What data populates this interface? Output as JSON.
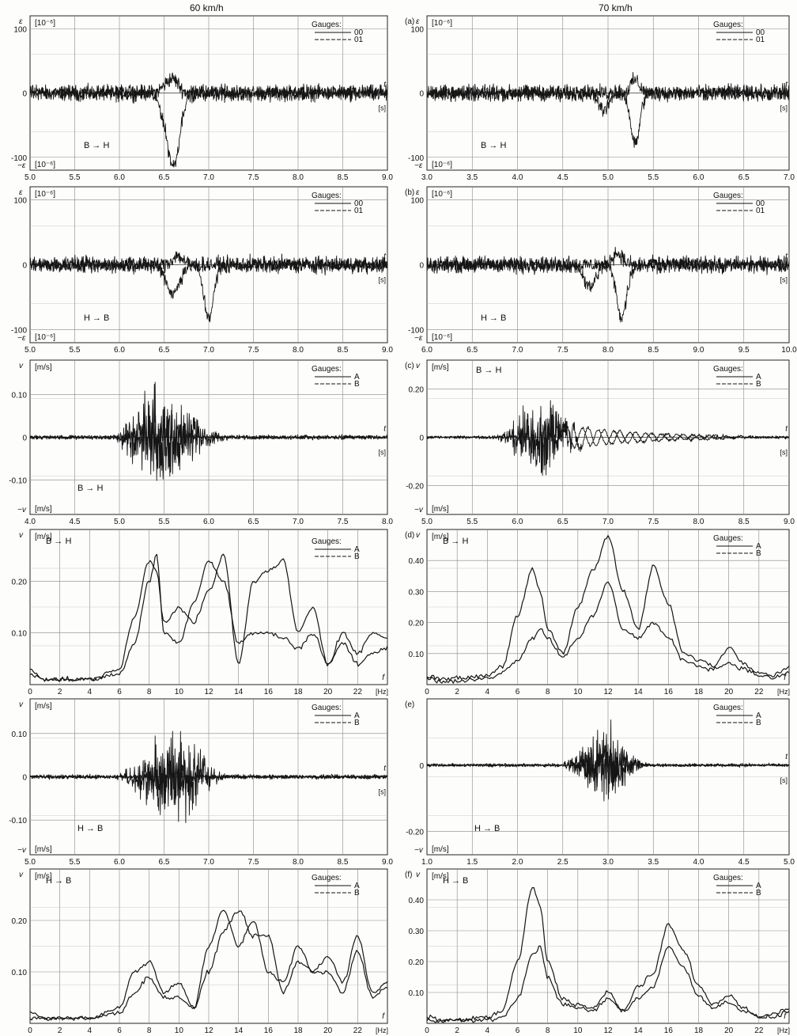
{
  "headers": {
    "left": "60 km/h",
    "right": "70 km/h"
  },
  "panel_tags": [
    "(a)",
    "(b)",
    "(c)",
    "(d)",
    "(e)",
    "(f)"
  ],
  "chart_data": [
    {
      "id": "a-left",
      "type": "line",
      "kind": "strain",
      "y_unit_top": "[10⁻⁶]",
      "y_unit_bottom": "[10⁻⁶]",
      "y_sym_top": "ε",
      "y_sym_bottom": "−ε",
      "x_sym": "t",
      "x_unit": "[s]",
      "direction": "B → H",
      "legend_title": "Gauges:",
      "ylim": [
        -120,
        120
      ],
      "yticks": [
        100,
        0,
        -100
      ],
      "xlim": [
        5.0,
        9.0
      ],
      "xticks": [
        "5.0",
        "5.5",
        "6.0",
        "6.5",
        "7.0",
        "7.5",
        "8.0",
        "8.5",
        "9.0"
      ],
      "series": [
        {
          "name": "00",
          "baseline_noise": 10,
          "features": [
            [
              6.55,
              14,
              0.1
            ],
            [
              6.62,
              12,
              0.08
            ]
          ]
        },
        {
          "name": "01",
          "baseline_noise": 10,
          "features": [
            [
              6.55,
              -45,
              0.11
            ],
            [
              6.62,
              -80,
              0.09
            ]
          ]
        }
      ]
    },
    {
      "id": "a-right",
      "type": "line",
      "kind": "strain",
      "y_unit_top": "[10⁻⁶]",
      "y_unit_bottom": "[10⁻⁶]",
      "y_sym_top": "ε",
      "y_sym_bottom": "−ε",
      "x_sym": "t",
      "x_unit": "[s]",
      "direction": "B → H",
      "legend_title": "Gauges:",
      "ylim": [
        -120,
        120
      ],
      "yticks": [
        100,
        0,
        -100
      ],
      "xlim": [
        3.0,
        7.0
      ],
      "xticks": [
        "3.0",
        "3.5",
        "4.0",
        "4.5",
        "5.0",
        "5.5",
        "6.0",
        "6.5",
        "7.0"
      ],
      "series": [
        {
          "name": "00",
          "baseline_noise": 10,
          "features": [
            [
              5.3,
              20,
              0.07
            ]
          ]
        },
        {
          "name": "01",
          "baseline_noise": 10,
          "features": [
            [
              4.95,
              -25,
              0.08
            ],
            [
              5.3,
              -80,
              0.07
            ]
          ]
        }
      ]
    },
    {
      "id": "b-left",
      "type": "line",
      "kind": "strain",
      "y_unit_top": "[10⁻⁶]",
      "y_unit_bottom": "[10⁻⁶]",
      "y_sym_top": "ε",
      "y_sym_bottom": "−ε",
      "x_sym": "t",
      "x_unit": "[s]",
      "direction": "H → B",
      "legend_title": "Gauges:",
      "ylim": [
        -120,
        120
      ],
      "yticks": [
        100,
        0,
        -100
      ],
      "xlim": [
        5.0,
        9.0
      ],
      "xticks": [
        "5.0",
        "5.5",
        "6.0",
        "6.5",
        "7.0",
        "7.5",
        "8.0",
        "8.5",
        "9.0"
      ],
      "series": [
        {
          "name": "00",
          "baseline_noise": 10,
          "features": [
            [
              6.65,
              14,
              0.08
            ]
          ]
        },
        {
          "name": "01",
          "baseline_noise": 10,
          "features": [
            [
              6.6,
              -45,
              0.1
            ],
            [
              7.0,
              -80,
              0.08
            ]
          ]
        }
      ]
    },
    {
      "id": "b-right",
      "type": "line",
      "kind": "strain",
      "y_unit_top": "[10⁻⁶]",
      "y_unit_bottom": "[10⁻⁶]",
      "y_sym_top": "ε",
      "y_sym_bottom": "−ε",
      "x_sym": "t",
      "x_unit": "[s]",
      "direction": "H → B",
      "legend_title": "Gauges:",
      "ylim": [
        -120,
        120
      ],
      "yticks": [
        100,
        0,
        -100
      ],
      "xlim": [
        6.0,
        10.0
      ],
      "xticks": [
        "6.0",
        "6.5",
        "7.0",
        "7.5",
        "8.0",
        "8.5",
        "9.0",
        "9.5",
        "10.0"
      ],
      "series": [
        {
          "name": "00",
          "baseline_noise": 10,
          "features": [
            [
              8.1,
              18,
              0.08
            ]
          ]
        },
        {
          "name": "01",
          "baseline_noise": 10,
          "features": [
            [
              7.8,
              -35,
              0.09
            ],
            [
              8.15,
              -80,
              0.08
            ]
          ]
        }
      ]
    },
    {
      "id": "c-left",
      "type": "line",
      "kind": "velocity",
      "y_unit_top": "[m/s]",
      "y_unit_bottom": "[m/s]",
      "y_sym_top": "v",
      "y_sym_bottom": "−v",
      "x_sym": "t",
      "x_unit": "[s]",
      "direction": "B → H",
      "legend_title": "Gauges:",
      "ylim": [
        -0.18,
        0.18
      ],
      "yticks": [
        0.1,
        0,
        -0.1
      ],
      "ytick_labels": [
        "0.10",
        "0",
        "-0.10"
      ],
      "xlim": [
        4.0,
        8.0
      ],
      "xticks": [
        "4.0",
        "4.5",
        "5.0",
        "5.5",
        "6.0",
        "6.5",
        "7.0",
        "7.5",
        "8.0"
      ],
      "series": [
        {
          "name": "A",
          "burst": [
            5.4,
            0.35,
            0.15
          ],
          "baseline_noise": 0.004
        },
        {
          "name": "B",
          "burst": [
            5.6,
            0.45,
            0.1
          ],
          "baseline_noise": 0.004
        }
      ]
    },
    {
      "id": "c-right",
      "type": "line",
      "kind": "velocity",
      "y_unit_top": "[m/s]",
      "y_unit_bottom": "[m/s]",
      "y_sym_top": "v",
      "y_sym_bottom": "−v",
      "x_sym": "t",
      "x_unit": "[s]",
      "direction": "B → H",
      "legend_title": "Gauges:",
      "ylim": [
        -0.32,
        0.32
      ],
      "yticks": [
        0.2,
        0,
        -0.2
      ],
      "ytick_labels": [
        "0.20",
        "0",
        "-0.20"
      ],
      "xlim": [
        5.0,
        9.0
      ],
      "xticks": [
        "5.0",
        "5.5",
        "6.0",
        "6.5",
        "7.0",
        "7.5",
        "8.0",
        "8.5",
        "9.0"
      ],
      "series": [
        {
          "name": "A",
          "burst": [
            6.2,
            0.3,
            0.22
          ],
          "tail": [
            6.5,
            8.5,
            0.05
          ],
          "baseline_noise": 0.005
        },
        {
          "name": "B",
          "burst": [
            6.35,
            0.3,
            0.17
          ],
          "tail": [
            6.6,
            8.3,
            0.05
          ],
          "baseline_noise": 0.005
        }
      ]
    },
    {
      "id": "d-left",
      "type": "line",
      "kind": "spectrum",
      "y_unit_top": "[m/s]",
      "y_sym_top": "v",
      "x_sym": "f",
      "x_unit": "[Hz]",
      "direction": "B → H",
      "legend_title": "Gauges:",
      "ylim": [
        0,
        0.3
      ],
      "yticks": [
        0.2,
        0.1
      ],
      "ytick_labels": [
        "0.20",
        "0.10"
      ],
      "xlim": [
        0,
        24
      ],
      "xticks": [
        "0",
        "2",
        "4",
        "6",
        "8",
        "10",
        "12",
        "14",
        "16",
        "18",
        "20",
        "22"
      ],
      "series": [
        {
          "name": "A",
          "x": [
            0,
            1,
            2,
            4,
            6,
            7,
            8,
            8.5,
            9,
            10,
            11,
            12,
            13,
            14,
            15,
            16,
            17,
            18,
            19,
            20,
            21,
            22,
            23,
            24
          ],
          "y": [
            0.03,
            0.01,
            0.01,
            0.01,
            0.03,
            0.13,
            0.24,
            0.22,
            0.12,
            0.15,
            0.12,
            0.18,
            0.25,
            0.04,
            0.2,
            0.22,
            0.24,
            0.1,
            0.15,
            0.04,
            0.1,
            0.06,
            0.1,
            0.09
          ]
        },
        {
          "name": "B",
          "x": [
            0,
            1,
            2,
            4,
            6,
            7,
            8,
            8.5,
            9,
            10,
            11,
            12,
            13,
            14,
            15,
            16,
            17,
            18,
            19,
            20,
            21,
            22,
            23,
            24
          ],
          "y": [
            0.02,
            0.01,
            0.01,
            0.01,
            0.02,
            0.08,
            0.2,
            0.25,
            0.1,
            0.08,
            0.16,
            0.24,
            0.2,
            0.08,
            0.1,
            0.1,
            0.09,
            0.07,
            0.1,
            0.04,
            0.08,
            0.04,
            0.06,
            0.07
          ]
        }
      ]
    },
    {
      "id": "d-right",
      "type": "line",
      "kind": "spectrum",
      "y_unit_top": "[m/s]",
      "y_sym_top": "v",
      "x_sym": "f",
      "x_unit": "[Hz]",
      "direction": "B → H",
      "legend_title": "Gauges:",
      "ylim": [
        0,
        0.5
      ],
      "yticks": [
        0.4,
        0.3,
        0.2,
        0.1
      ],
      "ytick_labels": [
        "0.40",
        "0.30",
        "0.20",
        "0.10"
      ],
      "xlim": [
        0,
        24
      ],
      "xticks": [
        "0",
        "2",
        "4",
        "6",
        "8",
        "10",
        "12",
        "14",
        "16",
        "18",
        "20",
        "22"
      ],
      "series": [
        {
          "name": "A",
          "x": [
            0,
            1,
            2,
            4,
            5,
            6,
            7,
            7.5,
            8,
            9,
            10,
            11,
            12,
            13,
            14,
            15,
            16,
            17,
            18,
            19,
            20,
            21,
            22,
            23,
            24
          ],
          "y": [
            0.03,
            0.02,
            0.02,
            0.03,
            0.06,
            0.22,
            0.37,
            0.3,
            0.18,
            0.1,
            0.25,
            0.37,
            0.48,
            0.3,
            0.18,
            0.38,
            0.26,
            0.1,
            0.08,
            0.06,
            0.12,
            0.07,
            0.04,
            0.03,
            0.06
          ]
        },
        {
          "name": "B",
          "x": [
            0,
            1,
            2,
            4,
            5,
            6,
            7,
            7.5,
            8,
            9,
            10,
            11,
            12,
            13,
            14,
            15,
            16,
            17,
            18,
            19,
            20,
            21,
            22,
            23,
            24
          ],
          "y": [
            0.02,
            0.01,
            0.01,
            0.02,
            0.04,
            0.08,
            0.15,
            0.18,
            0.15,
            0.09,
            0.15,
            0.22,
            0.33,
            0.18,
            0.15,
            0.2,
            0.15,
            0.08,
            0.06,
            0.05,
            0.07,
            0.05,
            0.03,
            0.02,
            0.04
          ]
        }
      ]
    },
    {
      "id": "e-left",
      "type": "line",
      "kind": "velocity",
      "y_unit_top": "[m/s]",
      "y_unit_bottom": "[m/s]",
      "y_sym_top": "v",
      "y_sym_bottom": "−v",
      "x_sym": "t",
      "x_unit": "[s]",
      "direction": "H → B",
      "legend_title": "Gauges:",
      "ylim": [
        -0.18,
        0.18
      ],
      "yticks": [
        0.1,
        0,
        -0.1
      ],
      "ytick_labels": [
        "0.10",
        "0",
        "-0.10"
      ],
      "xlim": [
        5.0,
        9.0
      ],
      "xticks": [
        "5.0",
        "5.5",
        "6.0",
        "6.5",
        "7.0",
        "7.5",
        "8.0",
        "8.5",
        "9.0"
      ],
      "series": [
        {
          "name": "A",
          "burst": [
            6.45,
            0.35,
            0.1
          ],
          "baseline_noise": 0.004
        },
        {
          "name": "B",
          "burst": [
            6.7,
            0.35,
            0.13
          ],
          "baseline_noise": 0.004
        }
      ]
    },
    {
      "id": "e-right",
      "type": "line",
      "kind": "velocity",
      "y_unit_top": "",
      "y_unit_bottom": "[m/s]",
      "y_sym_top": "",
      "y_sym_bottom": "−v",
      "x_sym": "t",
      "x_unit": "[s]",
      "direction": "H → B",
      "legend_title": "Gauges:",
      "ylim": [
        -0.27,
        0.2
      ],
      "yticks": [
        0,
        -0.2
      ],
      "ytick_labels": [
        "0",
        "-0.20"
      ],
      "xlim": [
        1.0,
        5.0
      ],
      "xticks": [
        "1.0",
        "1.5",
        "2.0",
        "2.5",
        "3.0",
        "3.5",
        "4.0",
        "4.5",
        "5.0"
      ],
      "series": [
        {
          "name": "A",
          "burst": [
            2.95,
            0.35,
            0.12
          ],
          "baseline_noise": 0.004
        },
        {
          "name": "B",
          "burst": [
            3.0,
            0.3,
            0.15
          ],
          "baseline_noise": 0.004
        }
      ]
    },
    {
      "id": "f-left",
      "type": "line",
      "kind": "spectrum",
      "y_unit_top": "[m/s]",
      "y_sym_top": "v",
      "x_sym": "f",
      "x_unit": "[Hz]",
      "direction": "H → B",
      "legend_title": "Gauges:",
      "ylim": [
        0,
        0.3
      ],
      "yticks": [
        0.2,
        0.1
      ],
      "ytick_labels": [
        "0.20",
        "0.10"
      ],
      "xlim": [
        0,
        24
      ],
      "xticks": [
        "0",
        "2",
        "4",
        "6",
        "8",
        "10",
        "12",
        "14",
        "16",
        "18",
        "20",
        "22"
      ],
      "series": [
        {
          "name": "A",
          "x": [
            0,
            1,
            2,
            4,
            6,
            7,
            8,
            9,
            10,
            11,
            12,
            13,
            14,
            15,
            16,
            17,
            18,
            19,
            20,
            21,
            22,
            23,
            24
          ],
          "y": [
            0.02,
            0.01,
            0.01,
            0.01,
            0.03,
            0.1,
            0.12,
            0.06,
            0.08,
            0.03,
            0.15,
            0.22,
            0.15,
            0.2,
            0.1,
            0.08,
            0.15,
            0.1,
            0.13,
            0.08,
            0.17,
            0.06,
            0.08
          ]
        },
        {
          "name": "B",
          "x": [
            0,
            1,
            2,
            4,
            6,
            7,
            8,
            9,
            10,
            11,
            12,
            13,
            14,
            15,
            16,
            17,
            18,
            19,
            20,
            21,
            22,
            23,
            24
          ],
          "y": [
            0.01,
            0.01,
            0.01,
            0.01,
            0.02,
            0.06,
            0.09,
            0.05,
            0.05,
            0.03,
            0.1,
            0.18,
            0.22,
            0.17,
            0.17,
            0.06,
            0.12,
            0.1,
            0.1,
            0.06,
            0.14,
            0.05,
            0.07
          ]
        }
      ]
    },
    {
      "id": "f-right",
      "type": "line",
      "kind": "spectrum",
      "y_unit_top": "[m/s]",
      "y_sym_top": "v",
      "x_sym": "f",
      "x_unit": "[Hz]",
      "direction": "H → B",
      "legend_title": "Gauges:",
      "ylim": [
        0,
        0.5
      ],
      "yticks": [
        0.4,
        0.3,
        0.2,
        0.1
      ],
      "ytick_labels": [
        "0.40",
        "0.30",
        "0.20",
        "0.10"
      ],
      "xlim": [
        0,
        24
      ],
      "xticks": [
        "0",
        "2",
        "4",
        "6",
        "8",
        "10",
        "12",
        "14",
        "16",
        "18",
        "20",
        "22"
      ],
      "series": [
        {
          "name": "A",
          "x": [
            0,
            1,
            2,
            4,
            5,
            6,
            7,
            7.5,
            8,
            9,
            10,
            11,
            12,
            13,
            14,
            15,
            16,
            17,
            18,
            19,
            20,
            21,
            22,
            23,
            24
          ],
          "y": [
            0.02,
            0.01,
            0.01,
            0.02,
            0.04,
            0.2,
            0.44,
            0.38,
            0.2,
            0.08,
            0.06,
            0.05,
            0.1,
            0.04,
            0.12,
            0.16,
            0.32,
            0.24,
            0.12,
            0.06,
            0.09,
            0.05,
            0.02,
            0.03,
            0.05
          ]
        },
        {
          "name": "B",
          "x": [
            0,
            1,
            2,
            4,
            5,
            6,
            7,
            7.5,
            8,
            9,
            10,
            11,
            12,
            13,
            14,
            15,
            16,
            17,
            18,
            19,
            20,
            21,
            22,
            23,
            24
          ],
          "y": [
            0.01,
            0.01,
            0.01,
            0.01,
            0.02,
            0.08,
            0.22,
            0.25,
            0.15,
            0.06,
            0.05,
            0.04,
            0.08,
            0.04,
            0.08,
            0.12,
            0.25,
            0.18,
            0.09,
            0.05,
            0.07,
            0.04,
            0.02,
            0.02,
            0.04
          ]
        }
      ]
    }
  ]
}
